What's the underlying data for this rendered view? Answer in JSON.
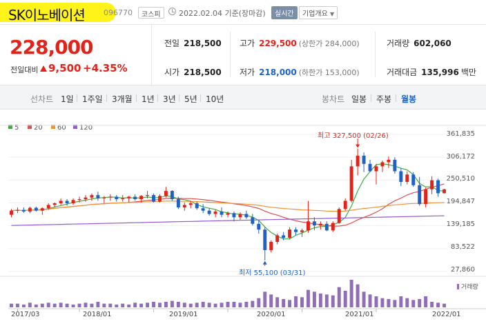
{
  "header": {
    "title": "SK이노베이션",
    "code": "096770",
    "market": "코스피",
    "date": "2022.02.04 기준(장마감)",
    "realtime": "실시간",
    "overview": "기업개요"
  },
  "price": {
    "current": "228,000",
    "change_label": "전일대비",
    "change": "9,500",
    "percent": "+4.35%"
  },
  "stats": {
    "prev_label": "전일",
    "prev": "218,500",
    "high_label": "고가",
    "high": "229,500",
    "upper_limit": "(상한가 284,000)",
    "volume_label": "거래량",
    "volume": "602,060",
    "open_label": "시가",
    "open": "218,500",
    "low_label": "저가",
    "low": "218,000",
    "lower_limit": "(하한가 153,000)",
    "amount_label": "거래대금",
    "amount": "135,996",
    "amount_unit": "백만"
  },
  "period": {
    "line_label": "선차트",
    "line_tabs": [
      "1일",
      "1주일",
      "3개월",
      "1년",
      "3년",
      "5년",
      "10년"
    ],
    "candle_label": "봉차트",
    "candle_tabs": [
      "일봉",
      "주봉",
      "월봉"
    ],
    "selected": "월봉"
  },
  "colors": {
    "up": "#e2231a",
    "down": "#1e62c8",
    "ma5": "#3dab3d",
    "ma20": "#e04b4b",
    "ma60": "#f0922e",
    "ma120": "#9557d0",
    "volume": "#8f6db8",
    "accent": "#1e62c8"
  },
  "chart_data": {
    "type": "candlestick",
    "legend": [
      "5",
      "20",
      "60",
      "120"
    ],
    "y_ticks": [
      "361,835",
      "306,172",
      "250,510",
      "194,847",
      "139,185",
      "83,522",
      "27,860"
    ],
    "x_ticks": [
      "2017/03",
      "2018/01",
      "2019/01",
      "2020/01",
      "2021/01",
      "2022/01"
    ],
    "ylim": [
      27860,
      361835
    ],
    "annotations": {
      "high": "최고 327,500 (02/26)",
      "low": "최저 55,100 (03/31)"
    },
    "volume_label": "거래량",
    "candles": [
      [
        166000,
        180000,
        160000,
        176000
      ],
      [
        176000,
        184000,
        170000,
        178000
      ],
      [
        178000,
        184000,
        171000,
        174000
      ],
      [
        174000,
        186000,
        170000,
        183000
      ],
      [
        183000,
        186000,
        174000,
        176000
      ],
      [
        176000,
        184000,
        166000,
        182000
      ],
      [
        182000,
        194000,
        178000,
        190000
      ],
      [
        190000,
        196000,
        184000,
        194000
      ],
      [
        194000,
        206000,
        190000,
        200000
      ],
      [
        200000,
        204000,
        188000,
        194000
      ],
      [
        194000,
        206000,
        190000,
        202000
      ],
      [
        202000,
        210000,
        196000,
        204000
      ],
      [
        204000,
        214000,
        198000,
        208000
      ],
      [
        208000,
        218000,
        200000,
        214000
      ],
      [
        214000,
        222000,
        200000,
        206000
      ],
      [
        206000,
        212000,
        194000,
        208000
      ],
      [
        208000,
        216000,
        200000,
        210000
      ],
      [
        210000,
        214000,
        198000,
        204000
      ],
      [
        204000,
        214000,
        198000,
        206000
      ],
      [
        206000,
        212000,
        196000,
        210000
      ],
      [
        210000,
        216000,
        200000,
        204000
      ],
      [
        204000,
        214000,
        196000,
        212000
      ],
      [
        212000,
        224000,
        206000,
        214000
      ],
      [
        214000,
        218000,
        196000,
        198000
      ],
      [
        198000,
        216000,
        196000,
        212000
      ],
      [
        212000,
        234000,
        208000,
        224000
      ],
      [
        224000,
        226000,
        200000,
        204000
      ],
      [
        204000,
        210000,
        180000,
        184000
      ],
      [
        184000,
        196000,
        176000,
        190000
      ],
      [
        190000,
        200000,
        182000,
        194000
      ],
      [
        194000,
        198000,
        178000,
        182000
      ],
      [
        182000,
        192000,
        170000,
        176000
      ],
      [
        176000,
        182000,
        164000,
        168000
      ],
      [
        168000,
        178000,
        160000,
        174000
      ],
      [
        174000,
        184000,
        160000,
        166000
      ],
      [
        166000,
        174000,
        160000,
        170000
      ],
      [
        170000,
        174000,
        150000,
        160000
      ],
      [
        160000,
        172000,
        154000,
        168000
      ],
      [
        168000,
        176000,
        156000,
        160000
      ],
      [
        160000,
        168000,
        140000,
        144000
      ],
      [
        144000,
        152000,
        120000,
        130000
      ],
      [
        130000,
        136000,
        55100,
        80000
      ],
      [
        80000,
        104000,
        74000,
        100000
      ],
      [
        100000,
        120000,
        94000,
        116000
      ],
      [
        116000,
        124000,
        104000,
        110000
      ],
      [
        110000,
        136000,
        106000,
        130000
      ],
      [
        130000,
        136000,
        116000,
        124000
      ],
      [
        124000,
        132000,
        112000,
        128000
      ],
      [
        128000,
        200000,
        122000,
        150000
      ],
      [
        150000,
        160000,
        128000,
        140000
      ],
      [
        140000,
        150000,
        130000,
        144000
      ],
      [
        144000,
        150000,
        126000,
        128000
      ],
      [
        128000,
        150000,
        124000,
        146000
      ],
      [
        146000,
        184000,
        144000,
        180000
      ],
      [
        180000,
        206000,
        176000,
        200000
      ],
      [
        200000,
        300000,
        196000,
        284000
      ],
      [
        284000,
        327500,
        262000,
        310000
      ],
      [
        310000,
        318000,
        270000,
        290000
      ],
      [
        290000,
        300000,
        270000,
        272000
      ],
      [
        272000,
        290000,
        240000,
        284000
      ],
      [
        284000,
        298000,
        270000,
        294000
      ],
      [
        294000,
        308000,
        280000,
        300000
      ],
      [
        300000,
        306000,
        266000,
        272000
      ],
      [
        272000,
        280000,
        236000,
        246000
      ],
      [
        246000,
        272000,
        240000,
        264000
      ],
      [
        264000,
        270000,
        234000,
        238000
      ],
      [
        238000,
        258000,
        188000,
        192000
      ],
      [
        192000,
        232000,
        184000,
        228000
      ],
      [
        228000,
        260000,
        216000,
        250000
      ],
      [
        250000,
        254000,
        210000,
        218500
      ],
      [
        218500,
        229500,
        218000,
        228000
      ]
    ],
    "volume": [
      4,
      4,
      3,
      5,
      3,
      4,
      5,
      4,
      5,
      4,
      3,
      4,
      5,
      4,
      6,
      4,
      4,
      3,
      4,
      3,
      5,
      4,
      5,
      6,
      5,
      6,
      7,
      6,
      5,
      4,
      5,
      6,
      5,
      4,
      5,
      6,
      6,
      5,
      6,
      7,
      10,
      17,
      14,
      11,
      9,
      8,
      12,
      11,
      19,
      17,
      15,
      14,
      13,
      22,
      18,
      30,
      25,
      17,
      14,
      12,
      10,
      9,
      8,
      12,
      10,
      8,
      9,
      12,
      6,
      5,
      4
    ]
  }
}
